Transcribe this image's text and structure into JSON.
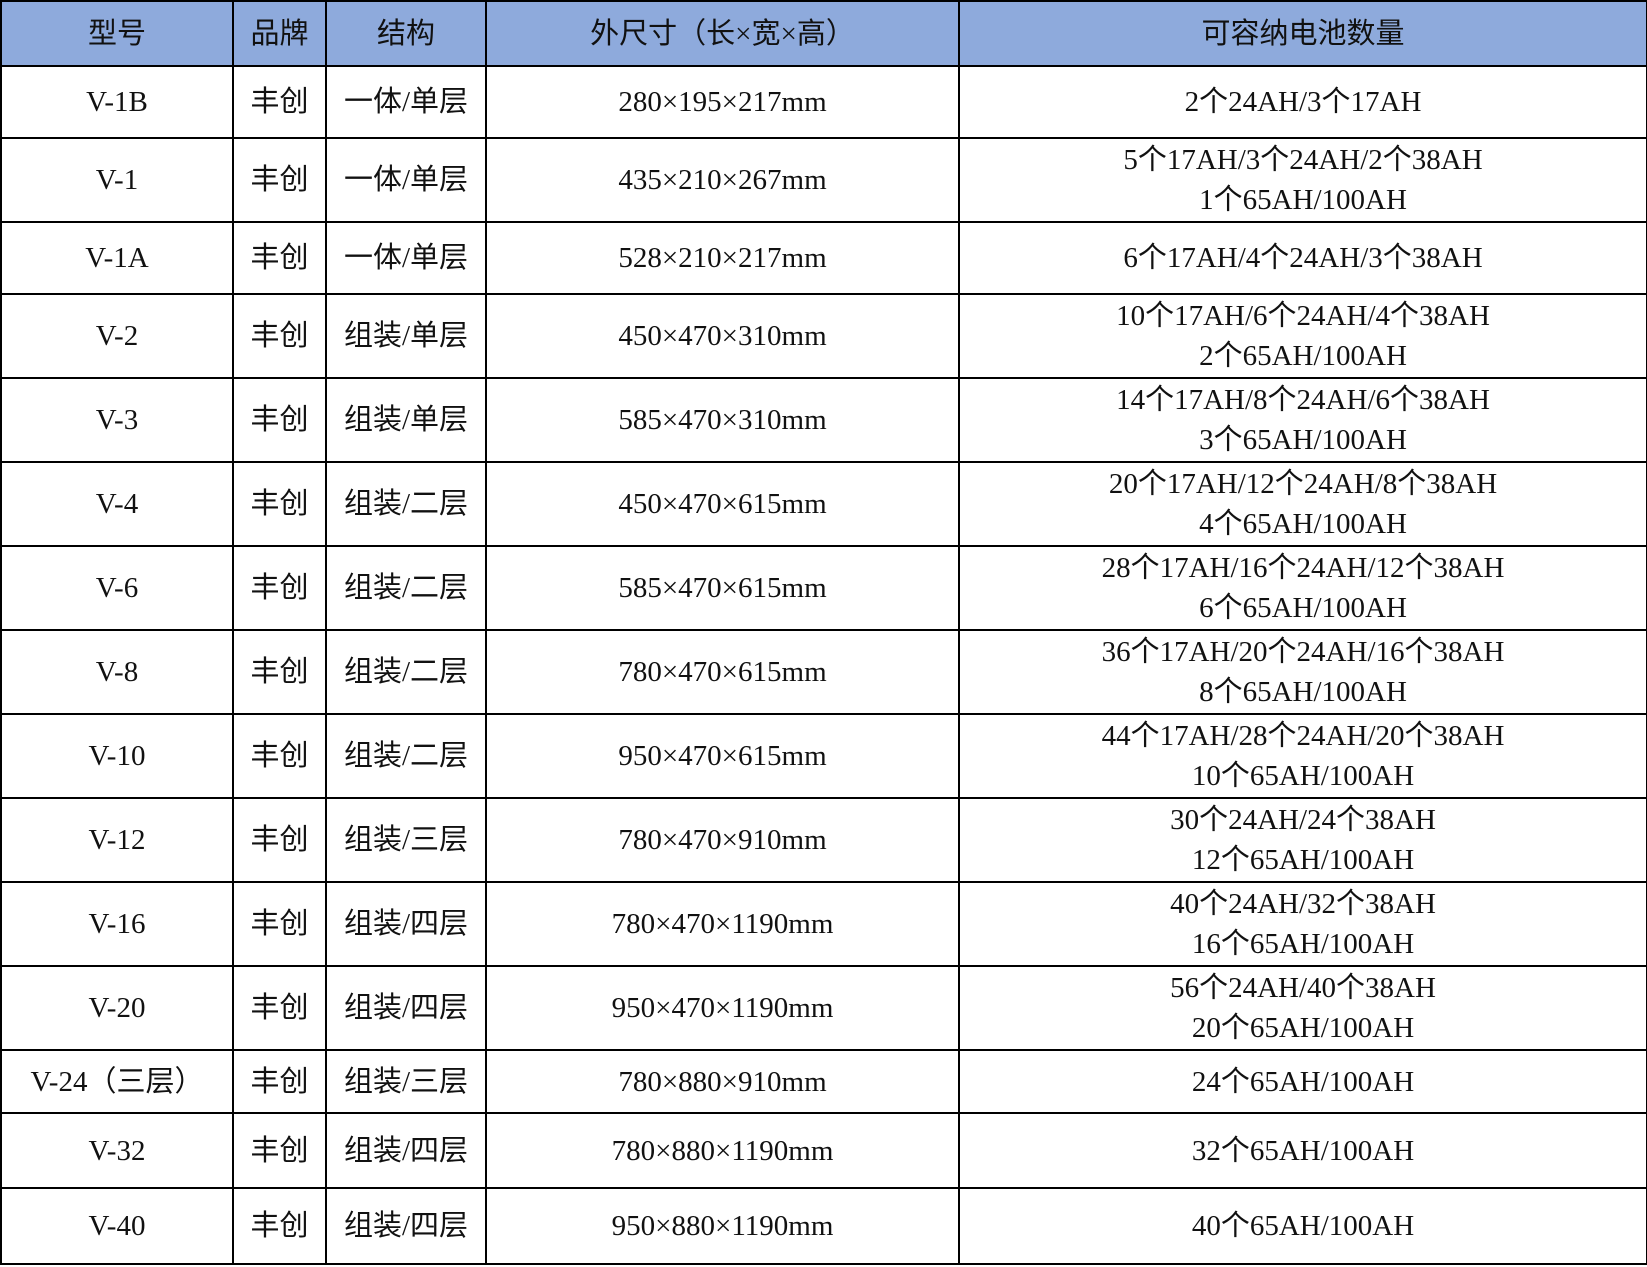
{
  "header_color": "#8eaadc",
  "columns": [
    "型号",
    "品牌",
    "结构",
    "外尺寸（长×宽×高）",
    "可容纳电池数量"
  ],
  "rows": [
    {
      "model": "V-1B",
      "brand": "丰创",
      "structure": "一体/单层",
      "size": "280×195×217mm",
      "capacity": [
        "2个24AH/3个17AH"
      ]
    },
    {
      "model": "V-1",
      "brand": "丰创",
      "structure": "一体/单层",
      "size": "435×210×267mm",
      "capacity": [
        "5个17AH/3个24AH/2个38AH",
        "1个65AH/100AH"
      ]
    },
    {
      "model": "V-1A",
      "brand": "丰创",
      "structure": "一体/单层",
      "size": "528×210×217mm",
      "capacity": [
        "6个17AH/4个24AH/3个38AH"
      ]
    },
    {
      "model": "V-2",
      "brand": "丰创",
      "structure": "组装/单层",
      "size": "450×470×310mm",
      "capacity": [
        "10个17AH/6个24AH/4个38AH",
        "2个65AH/100AH"
      ]
    },
    {
      "model": "V-3",
      "brand": "丰创",
      "structure": "组装/单层",
      "size": "585×470×310mm",
      "capacity": [
        "14个17AH/8个24AH/6个38AH",
        "3个65AH/100AH"
      ]
    },
    {
      "model": "V-4",
      "brand": "丰创",
      "structure": "组装/二层",
      "size": "450×470×615mm",
      "capacity": [
        "20个17AH/12个24AH/8个38AH",
        "4个65AH/100AH"
      ]
    },
    {
      "model": "V-6",
      "brand": "丰创",
      "structure": "组装/二层",
      "size": "585×470×615mm",
      "capacity": [
        "28个17AH/16个24AH/12个38AH",
        "6个65AH/100AH"
      ]
    },
    {
      "model": "V-8",
      "brand": "丰创",
      "structure": "组装/二层",
      "size": "780×470×615mm",
      "capacity": [
        "36个17AH/20个24AH/16个38AH",
        "8个65AH/100AH"
      ]
    },
    {
      "model": "V-10",
      "brand": "丰创",
      "structure": "组装/二层",
      "size": "950×470×615mm",
      "capacity": [
        "44个17AH/28个24AH/20个38AH",
        "10个65AH/100AH"
      ]
    },
    {
      "model": "V-12",
      "brand": "丰创",
      "structure": "组装/三层",
      "size": "780×470×910mm",
      "capacity": [
        "30个24AH/24个38AH",
        "12个65AH/100AH"
      ]
    },
    {
      "model": "V-16",
      "brand": "丰创",
      "structure": "组装/四层",
      "size": "780×470×1190mm",
      "capacity": [
        "40个24AH/32个38AH",
        "16个65AH/100AH"
      ]
    },
    {
      "model": "V-20",
      "brand": "丰创",
      "structure": "组装/四层",
      "size": "950×470×1190mm",
      "capacity": [
        "56个24AH/40个38AH",
        "20个65AH/100AH"
      ]
    },
    {
      "model": "V-24（三层）",
      "brand": "丰创",
      "structure": "组装/三层",
      "size": "780×880×910mm",
      "capacity": [
        "24个65AH/100AH"
      ]
    },
    {
      "model": "V-32",
      "brand": "丰创",
      "structure": "组装/四层",
      "size": "780×880×1190mm",
      "capacity": [
        "32个65AH/100AH"
      ]
    },
    {
      "model": "V-40",
      "brand": "丰创",
      "structure": "组装/四层",
      "size": "950×880×1190mm",
      "capacity": [
        "40个65AH/100AH"
      ]
    }
  ]
}
